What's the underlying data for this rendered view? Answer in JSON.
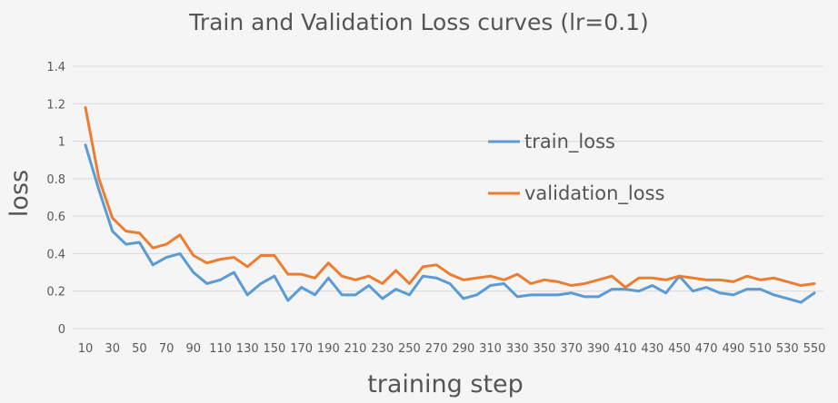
{
  "chart_data": {
    "type": "line",
    "title": "Train and Validation Loss curves  (lr=0.1)",
    "xlabel": "training step",
    "ylabel": "loss",
    "ylim": [
      0,
      1.4
    ],
    "yticks": [
      "0",
      "0.2",
      "0.4",
      "0.6",
      "0.8",
      "1",
      "1.2",
      "1.4"
    ],
    "ytick_values": [
      0,
      0.2,
      0.4,
      0.6,
      0.8,
      1.0,
      1.2,
      1.4
    ],
    "xtick_labels": [
      "10",
      "30",
      "50",
      "70",
      "90",
      "110",
      "130",
      "150",
      "170",
      "190",
      "210",
      "230",
      "250",
      "270",
      "290",
      "310",
      "330",
      "350",
      "370",
      "390",
      "410",
      "430",
      "450",
      "470",
      "490",
      "510",
      "530",
      "550"
    ],
    "x": [
      10,
      20,
      30,
      40,
      50,
      60,
      70,
      80,
      90,
      100,
      110,
      120,
      130,
      140,
      150,
      160,
      170,
      180,
      190,
      200,
      210,
      220,
      230,
      240,
      250,
      260,
      270,
      280,
      290,
      300,
      310,
      320,
      330,
      340,
      350,
      360,
      370,
      380,
      390,
      400,
      410,
      420,
      430,
      440,
      450,
      460,
      470,
      480,
      490,
      500,
      510,
      520,
      530,
      540,
      550
    ],
    "grid": true,
    "legend_position": "center-right",
    "series": [
      {
        "name": "train_loss",
        "color": "#5b9bd5",
        "values": [
          0.98,
          0.74,
          0.52,
          0.45,
          0.46,
          0.34,
          0.38,
          0.4,
          0.3,
          0.24,
          0.26,
          0.3,
          0.18,
          0.24,
          0.28,
          0.15,
          0.22,
          0.18,
          0.27,
          0.18,
          0.18,
          0.23,
          0.16,
          0.21,
          0.18,
          0.28,
          0.27,
          0.24,
          0.16,
          0.18,
          0.23,
          0.24,
          0.17,
          0.18,
          0.18,
          0.18,
          0.19,
          0.17,
          0.17,
          0.21,
          0.21,
          0.2,
          0.23,
          0.19,
          0.28,
          0.2,
          0.22,
          0.19,
          0.18,
          0.21,
          0.21,
          0.18,
          0.16,
          0.14,
          0.19
        ]
      },
      {
        "name": "validation_loss",
        "color": "#ed7d31",
        "values": [
          1.18,
          0.8,
          0.59,
          0.52,
          0.51,
          0.43,
          0.45,
          0.5,
          0.39,
          0.35,
          0.37,
          0.38,
          0.33,
          0.39,
          0.39,
          0.29,
          0.29,
          0.27,
          0.35,
          0.28,
          0.26,
          0.28,
          0.24,
          0.31,
          0.24,
          0.33,
          0.34,
          0.29,
          0.26,
          0.27,
          0.28,
          0.26,
          0.29,
          0.24,
          0.26,
          0.25,
          0.23,
          0.24,
          0.26,
          0.28,
          0.22,
          0.27,
          0.27,
          0.26,
          0.28,
          0.27,
          0.26,
          0.26,
          0.25,
          0.28,
          0.26,
          0.27,
          0.25,
          0.23,
          0.24
        ]
      }
    ]
  }
}
